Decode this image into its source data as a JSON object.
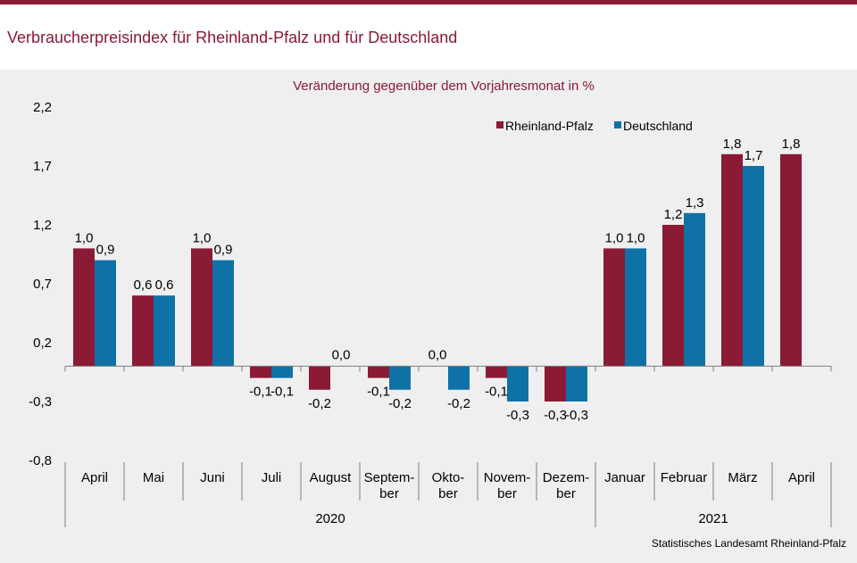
{
  "header": {
    "title": "Verbraucherpreisindex für Rheinland-Pfalz und für Deutschland"
  },
  "footer": {
    "source": "Statistisches Landesamt Rheinland-Pfalz"
  },
  "colors": {
    "accent": "#8b1a35",
    "rlp": "#8b1a35",
    "de": "#0e72a7",
    "panel": "#efefef"
  },
  "chart_data": {
    "type": "bar",
    "subtitle": "Veränderung gegenüber dem Vorjahresmonat in %",
    "categories": [
      [
        "April"
      ],
      [
        "Mai"
      ],
      [
        "Juni"
      ],
      [
        "Juli"
      ],
      [
        "August"
      ],
      [
        "Septem-",
        "ber"
      ],
      [
        "Okto-",
        "ber"
      ],
      [
        "Novem-",
        "ber"
      ],
      [
        "Dezem-",
        "ber"
      ],
      [
        "Januar"
      ],
      [
        "Februar"
      ],
      [
        "März"
      ],
      [
        "April"
      ]
    ],
    "years": [
      {
        "label": "2020",
        "from": 0,
        "to": 8
      },
      {
        "label": "2021",
        "from": 9,
        "to": 12
      }
    ],
    "series": [
      {
        "name": "Rheinland-Pfalz",
        "values": [
          1.0,
          0.6,
          1.0,
          -0.1,
          -0.2,
          -0.1,
          0.0,
          -0.1,
          -0.3,
          1.0,
          1.2,
          1.8,
          1.8
        ],
        "labels": [
          "1,0",
          "0,6",
          "1,0",
          "-0,1",
          "-0,2",
          "-0,1",
          "0,0",
          "-0,1",
          "-0,3",
          "1,0",
          "1,2",
          "1,8",
          "1,8"
        ]
      },
      {
        "name": "Deutschland",
        "values": [
          0.9,
          0.6,
          0.9,
          -0.1,
          0.0,
          -0.2,
          -0.2,
          -0.3,
          -0.3,
          1.0,
          1.3,
          1.7,
          null
        ],
        "labels": [
          "0,9",
          "0,6",
          "0,9",
          "-0,1",
          "0,0",
          "-0,2",
          "-0,2",
          "-0,3",
          "-0,3",
          "1,0",
          "1,3",
          "1,7",
          ""
        ]
      }
    ],
    "ylim": [
      -0.8,
      2.2
    ],
    "yticks": [
      -0.8,
      -0.3,
      0.2,
      0.7,
      1.2,
      1.7,
      2.2
    ],
    "ytick_labels": [
      "-0,8",
      "-0,3",
      "0,2",
      "0,7",
      "1,2",
      "1,7",
      "2,2"
    ],
    "grid": false,
    "legend": "top-right"
  }
}
